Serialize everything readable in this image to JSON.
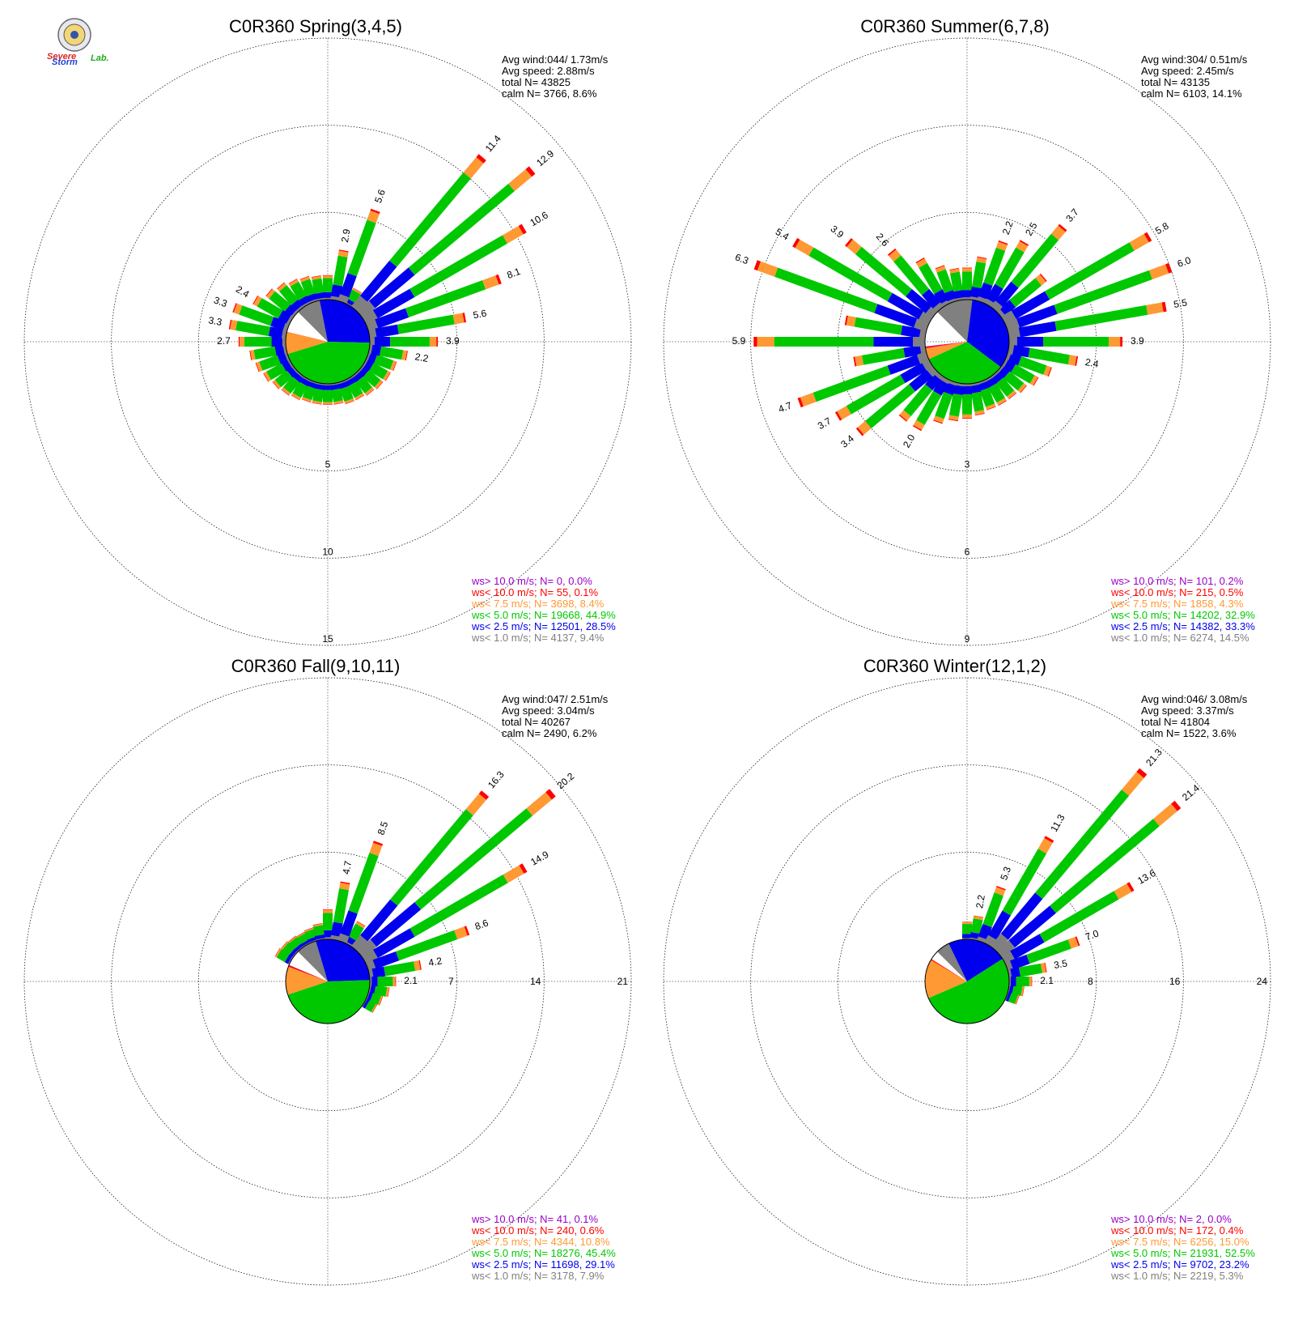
{
  "logo": {
    "word1": "Severe",
    "word2": "Storm",
    "word3": "Lab."
  },
  "colors": {
    "calm_gray": "#808080",
    "ws_lt_1": "#808080",
    "ws_lt_2_5": "#0000ee",
    "ws_lt_5": "#00c800",
    "ws_lt_7_5": "#ff9933",
    "ws_lt_10": "#ff0000",
    "ws_gt_10": "#9900cc",
    "grid": "#000000"
  },
  "chart_data": [
    {
      "type": "windrose",
      "title": "C0R360 Spring(3,4,5)",
      "stats": [
        "Avg wind:044/ 1.73m/s",
        "Avg speed: 2.88m/s",
        "total N=      43825",
        "calm N=   3766,   8.6%"
      ],
      "ring_labels": [
        "5",
        "10",
        "15"
      ],
      "rmax": 15,
      "legend": [
        "ws> 10.0 m/s; N=     0,  0.0%",
        "ws< 10.0 m/s; N=    55,  0.1%",
        "ws<  7.5 m/s; N=  3698,  8.4%",
        "ws<  5.0 m/s; N= 19668, 44.9%",
        "ws<  2.5 m/s; N= 12501, 28.5%",
        "ws<  1.0 m/s; N=  4137,  9.4%"
      ],
      "pie_pct": [
        9.4,
        28.5,
        44.9,
        8.4,
        0.1,
        0.0
      ],
      "labeled_bars": [
        {
          "dir": 10,
          "value": 2.9
        },
        {
          "dir": 20,
          "value": 5.6
        },
        {
          "dir": 40,
          "value": 11.4
        },
        {
          "dir": 50,
          "value": 12.9
        },
        {
          "dir": 60,
          "value": 10.6
        },
        {
          "dir": 70,
          "value": 8.1
        },
        {
          "dir": 80,
          "value": 5.6
        },
        {
          "dir": 90,
          "value": 3.9
        },
        {
          "dir": 100,
          "value": 2.2
        },
        {
          "dir": 270,
          "value": 2.7
        },
        {
          "dir": 280,
          "value": 3.3
        },
        {
          "dir": 290,
          "value": 3.3
        },
        {
          "dir": 300,
          "value": 2.4
        }
      ],
      "other_bars": [
        {
          "dir": 0,
          "value": 1.4
        },
        {
          "dir": 30,
          "value": 1.0
        },
        {
          "dir": 110,
          "value": 1.7
        },
        {
          "dir": 120,
          "value": 1.6
        },
        {
          "dir": 130,
          "value": 1.5
        },
        {
          "dir": 140,
          "value": 1.4
        },
        {
          "dir": 150,
          "value": 1.3
        },
        {
          "dir": 160,
          "value": 1.3
        },
        {
          "dir": 170,
          "value": 1.2
        },
        {
          "dir": 180,
          "value": 1.2
        },
        {
          "dir": 190,
          "value": 1.2
        },
        {
          "dir": 200,
          "value": 1.2
        },
        {
          "dir": 210,
          "value": 1.3
        },
        {
          "dir": 220,
          "value": 1.4
        },
        {
          "dir": 230,
          "value": 1.5
        },
        {
          "dir": 240,
          "value": 1.7
        },
        {
          "dir": 250,
          "value": 1.9
        },
        {
          "dir": 260,
          "value": 2.1
        },
        {
          "dir": 310,
          "value": 2.0
        },
        {
          "dir": 320,
          "value": 1.8
        },
        {
          "dir": 330,
          "value": 1.6
        },
        {
          "dir": 340,
          "value": 1.5
        },
        {
          "dir": 350,
          "value": 1.4
        }
      ]
    },
    {
      "type": "windrose",
      "title": "C0R360 Summer(6,7,8)",
      "stats": [
        "Avg wind:304/ 0.51m/s",
        "Avg speed: 2.45m/s",
        "total N=      43135",
        "calm N=   6103,  14.1%"
      ],
      "ring_labels": [
        "3",
        "6",
        "9"
      ],
      "rmax": 9,
      "legend": [
        "ws> 10.0 m/s; N=   101,  0.2%",
        "ws< 10.0 m/s; N=   215,  0.5%",
        "ws<  7.5 m/s; N=  1858,  4.3%",
        "ws<  5.0 m/s; N= 14202, 32.9%",
        "ws<  2.5 m/s; N= 14382, 33.3%",
        "ws<  1.0 m/s; N=  6274, 14.5%"
      ],
      "pie_pct": [
        14.5,
        33.3,
        32.9,
        4.3,
        0.5,
        0.2
      ],
      "labeled_bars": [
        {
          "dir": 20,
          "value": 2.2
        },
        {
          "dir": 30,
          "value": 2.5
        },
        {
          "dir": 40,
          "value": 3.7
        },
        {
          "dir": 60,
          "value": 5.8
        },
        {
          "dir": 70,
          "value": 6.0
        },
        {
          "dir": 80,
          "value": 5.5
        },
        {
          "dir": 90,
          "value": 3.9
        },
        {
          "dir": 100,
          "value": 2.4
        },
        {
          "dir": 210,
          "value": 2.0
        },
        {
          "dir": 230,
          "value": 3.4
        },
        {
          "dir": 240,
          "value": 3.7
        },
        {
          "dir": 250,
          "value": 4.7
        },
        {
          "dir": 270,
          "value": 5.9
        },
        {
          "dir": 290,
          "value": 6.3
        },
        {
          "dir": 300,
          "value": 5.4
        },
        {
          "dir": 310,
          "value": 3.9
        },
        {
          "dir": 320,
          "value": 2.6
        }
      ],
      "other_bars": [
        {
          "dir": 0,
          "value": 1.1
        },
        {
          "dir": 10,
          "value": 1.5
        },
        {
          "dir": 50,
          "value": 2.0
        },
        {
          "dir": 110,
          "value": 1.6
        },
        {
          "dir": 120,
          "value": 1.3
        },
        {
          "dir": 130,
          "value": 1.1
        },
        {
          "dir": 140,
          "value": 1.0
        },
        {
          "dir": 150,
          "value": 1.0
        },
        {
          "dir": 160,
          "value": 1.0
        },
        {
          "dir": 170,
          "value": 1.1
        },
        {
          "dir": 180,
          "value": 1.2
        },
        {
          "dir": 190,
          "value": 1.3
        },
        {
          "dir": 200,
          "value": 1.5
        },
        {
          "dir": 220,
          "value": 2.0
        },
        {
          "dir": 260,
          "value": 2.5
        },
        {
          "dir": 280,
          "value": 2.8
        },
        {
          "dir": 330,
          "value": 1.8
        },
        {
          "dir": 340,
          "value": 1.3
        },
        {
          "dir": 350,
          "value": 1.1
        }
      ]
    },
    {
      "type": "windrose",
      "title": "C0R360 Fall(9,10,11)",
      "stats": [
        "Avg wind:047/ 2.51m/s",
        "Avg speed: 3.04m/s",
        "total N=      40267",
        "calm N=   2490,   6.2%"
      ],
      "ring_labels": [
        "7",
        "14",
        "21"
      ],
      "rmax": 21,
      "legend": [
        "ws> 10.0 m/s; N=    41,  0.1%",
        "ws< 10.0 m/s; N=   240,  0.6%",
        "ws<  7.5 m/s; N=  4344, 10.8%",
        "ws<  5.0 m/s; N= 18276, 45.4%",
        "ws<  2.5 m/s; N= 11698, 29.1%",
        "ws<  1.0 m/s; N=  3178,  7.9%"
      ],
      "pie_pct": [
        7.9,
        29.1,
        45.4,
        10.8,
        0.6,
        0.1
      ],
      "labeled_bars": [
        {
          "dir": 10,
          "value": 4.7
        },
        {
          "dir": 20,
          "value": 8.5
        },
        {
          "dir": 40,
          "value": 16.3
        },
        {
          "dir": 50,
          "value": 20.2
        },
        {
          "dir": 60,
          "value": 14.9
        },
        {
          "dir": 70,
          "value": 8.6
        },
        {
          "dir": 80,
          "value": 4.2
        },
        {
          "dir": 90,
          "value": 2.1
        }
      ],
      "other_bars": [
        {
          "dir": 0,
          "value": 2.4
        },
        {
          "dir": 30,
          "value": 2.0
        },
        {
          "dir": 100,
          "value": 1.6
        },
        {
          "dir": 110,
          "value": 1.2
        },
        {
          "dir": 120,
          "value": 1.0
        },
        {
          "dir": 300,
          "value": 1.3
        },
        {
          "dir": 310,
          "value": 1.2
        },
        {
          "dir": 320,
          "value": 1.1
        },
        {
          "dir": 330,
          "value": 1.0
        },
        {
          "dir": 340,
          "value": 1.1
        },
        {
          "dir": 350,
          "value": 1.3
        }
      ]
    },
    {
      "type": "windrose",
      "title": "C0R360 Winter(12,1,2)",
      "stats": [
        "Avg wind:046/ 3.08m/s",
        "Avg speed: 3.37m/s",
        "total N=      41804",
        "calm N=   1522,   3.6%"
      ],
      "ring_labels": [
        "8",
        "16",
        "24"
      ],
      "rmax": 24,
      "legend": [
        "ws> 10.0 m/s; N=     2,  0.0%",
        "ws< 10.0 m/s; N=   172,  0.4%",
        "ws<  7.5 m/s; N=  6256, 15.0%",
        "ws<  5.0 m/s; N= 21931, 52.5%",
        "ws<  2.5 m/s; N=  9702, 23.2%",
        "ws<  1.0 m/s; N=  2219,  5.3%"
      ],
      "pie_pct": [
        5.3,
        23.2,
        52.5,
        15.0,
        0.4,
        0.0
      ],
      "labeled_bars": [
        {
          "dir": 10,
          "value": 2.2
        },
        {
          "dir": 20,
          "value": 5.3
        },
        {
          "dir": 30,
          "value": 11.3
        },
        {
          "dir": 40,
          "value": 21.3
        },
        {
          "dir": 50,
          "value": 21.4
        },
        {
          "dir": 60,
          "value": 13.6
        },
        {
          "dir": 70,
          "value": 7.0
        },
        {
          "dir": 80,
          "value": 3.5
        },
        {
          "dir": 90,
          "value": 2.1
        }
      ],
      "other_bars": [
        {
          "dir": 0,
          "value": 1.6
        },
        {
          "dir": 100,
          "value": 1.4
        },
        {
          "dir": 110,
          "value": 1.1
        }
      ]
    }
  ]
}
